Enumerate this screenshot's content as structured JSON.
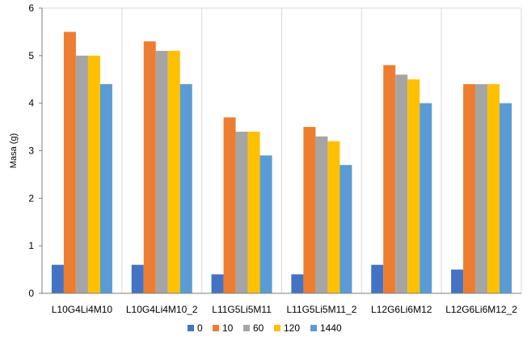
{
  "chart_data": {
    "type": "bar",
    "title": "",
    "xlabel": "",
    "ylabel": "Masa (g)",
    "ylim": [
      0,
      6
    ],
    "yticks": [
      0,
      1,
      2,
      3,
      4,
      5,
      6
    ],
    "grid": "vertical category separators",
    "legend_position": "bottom",
    "categories": [
      "L10G4Li4M10",
      "L10G4Li4M10_2",
      "L11G5Li5M11",
      "L11G5Li5M11_2",
      "L12G6Li6M12",
      "L12G6Li6M12_2"
    ],
    "series": [
      {
        "name": "0",
        "color": "#4472C4",
        "values": [
          0.6,
          0.6,
          0.4,
          0.4,
          0.6,
          0.5
        ]
      },
      {
        "name": "10",
        "color": "#ED7D31",
        "values": [
          5.5,
          5.3,
          3.7,
          3.5,
          4.8,
          4.4
        ]
      },
      {
        "name": "60",
        "color": "#A5A5A5",
        "values": [
          5.0,
          5.1,
          3.4,
          3.3,
          4.6,
          4.4
        ]
      },
      {
        "name": "120",
        "color": "#FFC000",
        "values": [
          5.0,
          5.1,
          3.4,
          3.2,
          4.5,
          4.4
        ]
      },
      {
        "name": "1440",
        "color": "#5B9BD5",
        "values": [
          4.4,
          4.4,
          2.9,
          2.7,
          4.0,
          4.0
        ]
      }
    ]
  }
}
